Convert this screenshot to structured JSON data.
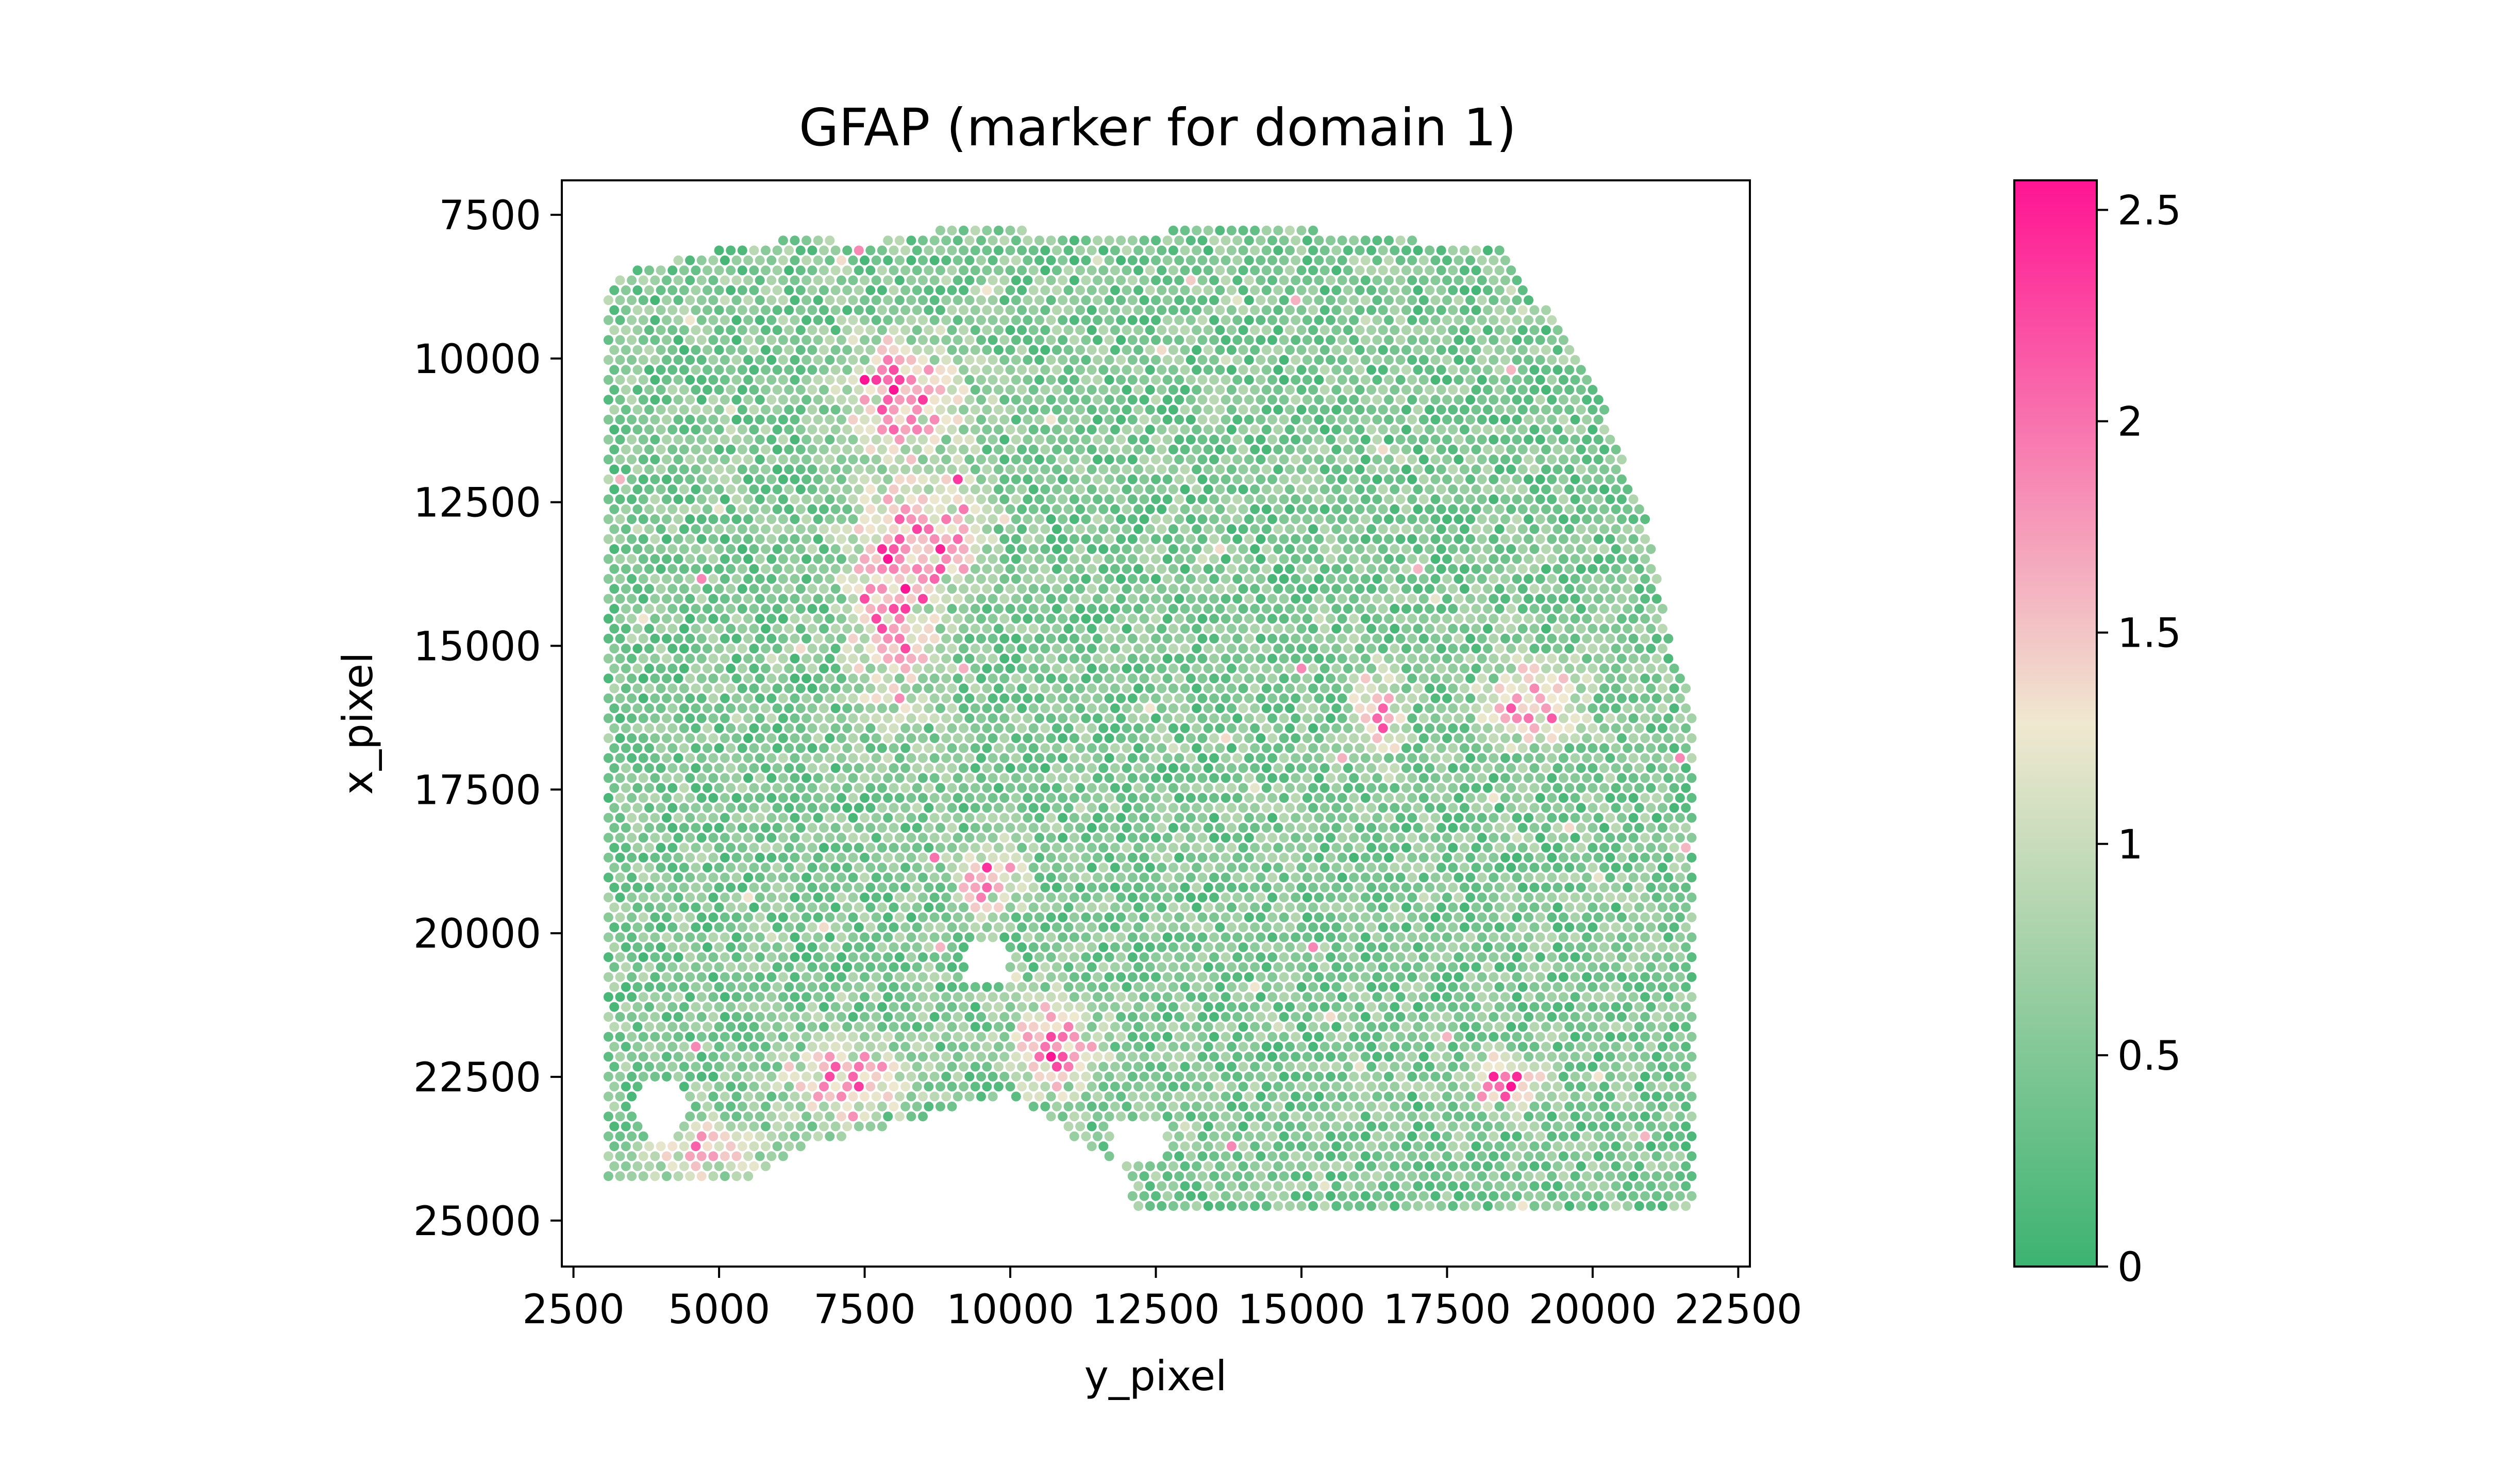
{
  "chart_data": {
    "type": "scatter",
    "title": "GFAP (marker for domain 1)",
    "xlabel": "y_pixel",
    "ylabel": "x_pixel",
    "xlim": [
      2300,
      22700
    ],
    "ylim": [
      25800,
      6900
    ],
    "y_inverted": true,
    "xticks": [
      2500,
      5000,
      7500,
      10000,
      12500,
      15000,
      17500,
      20000,
      22500
    ],
    "yticks": [
      7500,
      10000,
      12500,
      15000,
      17500,
      20000,
      22500,
      25000
    ],
    "grid": false,
    "colorbar": {
      "range": [
        0,
        2.57
      ],
      "ticks": [
        0,
        0.5,
        1,
        1.5,
        2,
        2.5
      ],
      "tick_labels": [
        "0",
        "0.5",
        "1",
        "1.5",
        "2",
        "2.5"
      ],
      "colors": [
        "#3cb371",
        "#f0e8d0",
        "#ff1493"
      ],
      "color_stops": [
        0,
        0.5,
        1
      ]
    },
    "spot_spacing": 200,
    "tissue_boundary_left": [
      [
        3100,
        8700
      ],
      [
        3400,
        8500
      ],
      [
        4500,
        8200
      ],
      [
        5500,
        8000
      ],
      [
        6500,
        7900
      ],
      [
        7500,
        8000
      ],
      [
        8500,
        7800
      ],
      [
        9500,
        7700
      ],
      [
        10500,
        7800
      ],
      [
        11500,
        7800
      ],
      [
        12500,
        7800
      ],
      [
        13500,
        7700
      ],
      [
        14500,
        7700
      ],
      [
        15500,
        7800
      ],
      [
        16500,
        7900
      ],
      [
        17500,
        8000
      ],
      [
        18500,
        8000
      ]
    ],
    "tissue_boundary_right": [
      [
        18500,
        8000
      ],
      [
        19000,
        8900
      ],
      [
        19700,
        9700
      ],
      [
        20200,
        10800
      ],
      [
        20600,
        12000
      ],
      [
        21000,
        13000
      ],
      [
        21200,
        14300
      ],
      [
        21400,
        15100
      ],
      [
        21700,
        16000
      ],
      [
        21700,
        18000
      ],
      [
        21700,
        24800
      ]
    ],
    "tissue_bottom": [
      [
        3100,
        24300
      ],
      [
        5500,
        24300
      ],
      [
        6500,
        23700
      ],
      [
        8500,
        23200
      ],
      [
        10000,
        22800
      ],
      [
        11000,
        23500
      ],
      [
        12000,
        24100
      ],
      [
        12000,
        24800
      ],
      [
        15000,
        24900
      ],
      [
        18000,
        24900
      ],
      [
        21700,
        24800
      ]
    ],
    "holes": [
      {
        "center": [
          9600,
          20500
        ],
        "radius": [
          400,
          400
        ]
      },
      {
        "center": [
          4000,
          23100
        ],
        "radius": [
          450,
          500
        ]
      },
      {
        "center": [
          12200,
          23600
        ],
        "radius": [
          500,
          400
        ]
      }
    ],
    "high_expression_regions": [
      {
        "center": [
          8000,
          14000
        ],
        "spread": [
          700,
          1800
        ],
        "level": 1.9
      },
      {
        "center": [
          8200,
          10600
        ],
        "spread": [
          1000,
          900
        ],
        "level": 1.7
      },
      {
        "center": [
          9000,
          13000
        ],
        "spread": [
          500,
          900
        ],
        "level": 1.5
      },
      {
        "center": [
          10800,
          22000
        ],
        "spread": [
          700,
          700
        ],
        "level": 1.9
      },
      {
        "center": [
          7200,
          22500
        ],
        "spread": [
          1000,
          600
        ],
        "level": 1.6
      },
      {
        "center": [
          19000,
          16000
        ],
        "spread": [
          800,
          600
        ],
        "level": 1.9
      },
      {
        "center": [
          18500,
          22600
        ],
        "spread": [
          600,
          400
        ],
        "level": 1.9
      },
      {
        "center": [
          4800,
          23800
        ],
        "spread": [
          900,
          500
        ],
        "level": 1.6
      },
      {
        "center": [
          16300,
          16200
        ],
        "spread": [
          400,
          800
        ],
        "level": 1.4
      },
      {
        "center": [
          9600,
          19000
        ],
        "spread": [
          600,
          600
        ],
        "level": 1.5
      }
    ],
    "base_expression": 0.45
  }
}
